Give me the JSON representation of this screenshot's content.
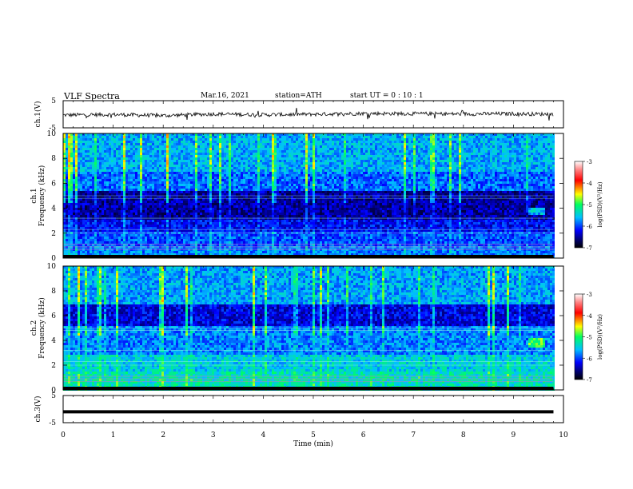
{
  "header": {
    "title": "VLF Spectra",
    "date": "Mar.16, 2021",
    "station": "station=ATH",
    "start_ut": "start UT =  0 : 10 : 1"
  },
  "chart_data": [
    {
      "type": "line",
      "ylabel": "ch.1(V)",
      "ylim": [
        -5,
        5
      ],
      "yticks": [
        "5",
        "-5"
      ],
      "description_series": "waveform",
      "x": [
        0,
        1,
        2,
        3,
        4,
        5,
        6,
        7,
        8,
        9,
        9.8
      ],
      "values": [
        -0.3,
        -0.1,
        -0.5,
        0.1,
        -0.2,
        0.0,
        0.3,
        0.2,
        0.1,
        0.2,
        0.0
      ]
    },
    {
      "type": "heatmap",
      "ylabel": "ch.1  Frequency (kHz)",
      "ylim": [
        0,
        10
      ],
      "yticks": [
        "0",
        "2",
        "4",
        "6",
        "8",
        "10"
      ],
      "xlim": [
        0,
        10
      ],
      "colorbar": {
        "label": "log(PSD)(V²/Hz)",
        "ticks": [
          "-3",
          "-4",
          "-5",
          "-6",
          "-7"
        ],
        "range": [
          -7,
          -3
        ]
      }
    },
    {
      "type": "heatmap",
      "ylabel": "ch.2  Frequency (kHz)",
      "ylim": [
        0,
        10
      ],
      "yticks": [
        "0",
        "2",
        "4",
        "6",
        "8",
        "10"
      ],
      "xlim": [
        0,
        10
      ],
      "colorbar": {
        "label": "log(PSD)(V²/Hz)",
        "ticks": [
          "-3",
          "-4",
          "-5",
          "-6",
          "-7"
        ],
        "range": [
          -7,
          -3
        ]
      }
    },
    {
      "type": "line",
      "ylabel": "ch.3(V)",
      "ylim": [
        -5,
        5
      ],
      "yticks": [
        "5",
        "-5"
      ],
      "x": [
        0,
        9.8
      ],
      "values": [
        -1.0,
        -1.0
      ]
    }
  ],
  "xaxis": {
    "label": "Time (min)",
    "ticks": [
      "0",
      "1",
      "2",
      "3",
      "4",
      "5",
      "6",
      "7",
      "8",
      "9",
      "10"
    ],
    "range": [
      0,
      10
    ]
  }
}
